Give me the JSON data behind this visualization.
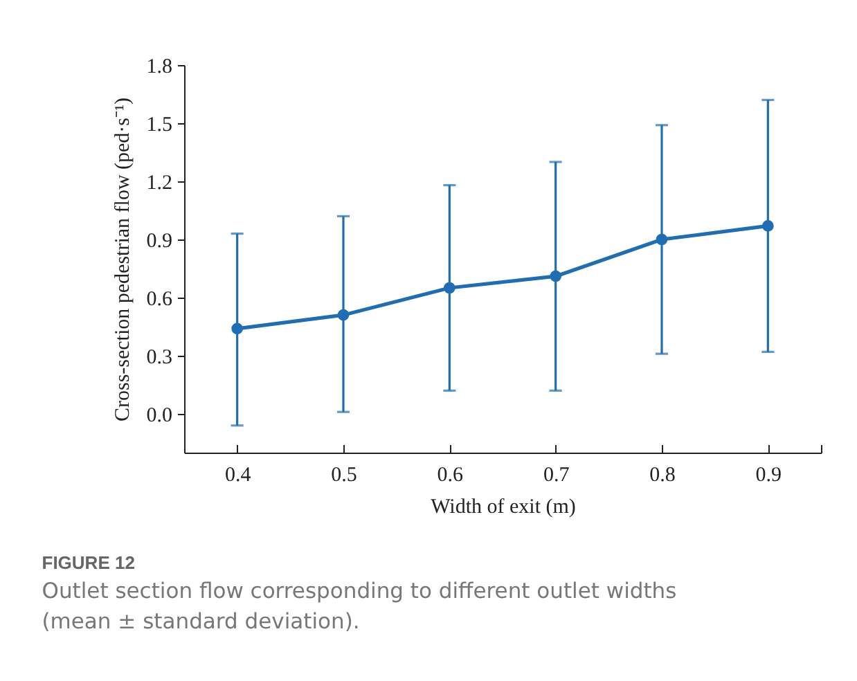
{
  "chart_data": {
    "type": "line",
    "title": "FIGURE 12",
    "subtitle": "Outlet section flow corresponding to different outlet widths\n(mean ± standard deviation).",
    "xlabel": "Width of exit (m)",
    "ylabel": "Cross-section pedestrian flow (ped·s⁻¹)",
    "x": [
      0.4,
      0.5,
      0.6,
      0.7,
      0.8,
      0.9
    ],
    "series": [
      {
        "color": "#1f6eb4",
        "values": [
          0.44,
          0.51,
          0.65,
          0.71,
          0.9,
          0.97
        ],
        "errors": [
          [
            -0.06,
            0.93
          ],
          [
            0.01,
            1.02
          ],
          [
            0.12,
            1.18
          ],
          [
            0.12,
            1.3
          ],
          [
            0.31,
            1.49
          ],
          [
            0.32,
            1.62
          ]
        ]
      }
    ],
    "xlim": [
      0.35,
      0.95
    ],
    "xticks": [
      0.4,
      0.5,
      0.6,
      0.7,
      0.8,
      0.9,
      {
        "value": 0.95,
        "label": null
      }
    ],
    "ylim": [
      -0.2,
      1.8
    ],
    "yticks": [
      {
        "value": 0,
        "label": "0.0"
      },
      0.3,
      0.6,
      0.9,
      1.2,
      1.5,
      1.8
    ],
    "marker": "circle",
    "line_style": "solid",
    "grid": false
  }
}
